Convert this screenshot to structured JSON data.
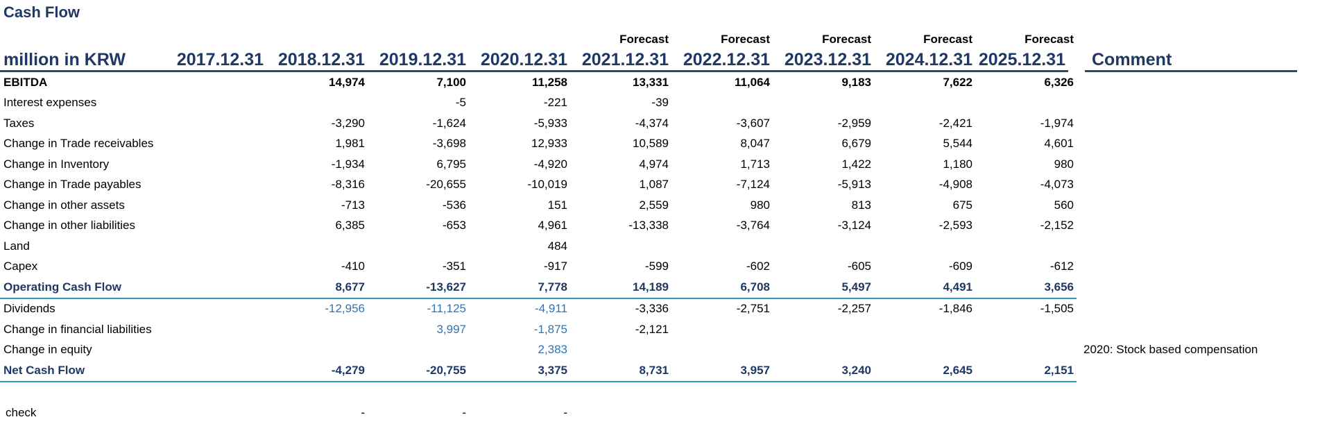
{
  "title": "Cash Flow",
  "unit_label": "million in KRW",
  "comment_header": "Comment",
  "forecast_label": "Forecast",
  "years": [
    "2017.12.31",
    "2018.12.31",
    "2019.12.31",
    "2020.12.31",
    "2021.12.31",
    "2022.12.31",
    "2023.12.31",
    "2024.12.31",
    "2025.12.31"
  ],
  "forecast_flags": [
    false,
    false,
    false,
    false,
    true,
    true,
    true,
    true,
    true
  ],
  "rows": [
    {
      "label": "EBITDA",
      "values": [
        "",
        "14,974",
        "7,100",
        "11,258",
        "13,331",
        "11,064",
        "9,183",
        "7,622",
        "6,326"
      ],
      "comment": "",
      "style": "bold"
    },
    {
      "label": "Interest expenses",
      "values": [
        "",
        "",
        "-5",
        "-221",
        "-39",
        "",
        "",
        "",
        ""
      ],
      "comment": "",
      "style": ""
    },
    {
      "label": "Taxes",
      "values": [
        "",
        "-3,290",
        "-1,624",
        "-5,933",
        "-4,374",
        "-3,607",
        "-2,959",
        "-2,421",
        "-1,974"
      ],
      "comment": "",
      "style": ""
    },
    {
      "label": "Change in Trade receivables",
      "values": [
        "",
        "1,981",
        "-3,698",
        "12,933",
        "10,589",
        "8,047",
        "6,679",
        "5,544",
        "4,601"
      ],
      "comment": "",
      "style": ""
    },
    {
      "label": "Change in Inventory",
      "values": [
        "",
        "-1,934",
        "6,795",
        "-4,920",
        "4,974",
        "1,713",
        "1,422",
        "1,180",
        "980"
      ],
      "comment": "",
      "style": ""
    },
    {
      "label": "Change in Trade payables",
      "values": [
        "",
        "-8,316",
        "-20,655",
        "-10,019",
        "1,087",
        "-7,124",
        "-5,913",
        "-4,908",
        "-4,073"
      ],
      "comment": "",
      "style": ""
    },
    {
      "label": "Change in other assets",
      "values": [
        "",
        "-713",
        "-536",
        "151",
        "2,559",
        "980",
        "813",
        "675",
        "560"
      ],
      "comment": "",
      "style": ""
    },
    {
      "label": "Change in other liabilities",
      "values": [
        "",
        "6,385",
        "-653",
        "4,961",
        "-13,338",
        "-3,764",
        "-3,124",
        "-2,593",
        "-2,152"
      ],
      "comment": "",
      "style": ""
    },
    {
      "label": "Land",
      "values": [
        "",
        "",
        "",
        "484",
        "",
        "",
        "",
        "",
        ""
      ],
      "comment": "",
      "style": ""
    },
    {
      "label": "Capex",
      "values": [
        "",
        "-410",
        "-351",
        "-917",
        "-599",
        "-602",
        "-605",
        "-609",
        "-612"
      ],
      "comment": "",
      "style": ""
    },
    {
      "label": "Operating Cash Flow",
      "values": [
        "",
        "8,677",
        "-13,627",
        "7,778",
        "14,189",
        "6,708",
        "5,497",
        "4,491",
        "3,656"
      ],
      "comment": "",
      "style": "total"
    },
    {
      "label": "Dividends",
      "values": [
        "",
        "-12,956",
        "-11,125",
        "-4,911",
        "-3,336",
        "-2,751",
        "-2,257",
        "-1,846",
        "-1,505"
      ],
      "comment": "",
      "style": "",
      "blue_cols": [
        1,
        2,
        3
      ]
    },
    {
      "label": "Change in financial liabilities",
      "values": [
        "",
        "",
        "3,997",
        "-1,875",
        "-2,121",
        "",
        "",
        "",
        ""
      ],
      "comment": "",
      "style": "",
      "blue_cols": [
        2,
        3
      ]
    },
    {
      "label": "Change in equity",
      "values": [
        "",
        "",
        "",
        "2,383",
        "",
        "",
        "",
        "",
        ""
      ],
      "comment": "2020: Stock based compensation",
      "style": "",
      "blue_cols": [
        3
      ]
    },
    {
      "label": "Net Cash Flow",
      "values": [
        "",
        "-4,279",
        "-20,755",
        "3,375",
        "8,731",
        "3,957",
        "3,240",
        "2,645",
        "2,151"
      ],
      "comment": "",
      "style": "total"
    }
  ],
  "check": {
    "label": "check",
    "values": [
      "",
      "-",
      "-",
      "-",
      "",
      "",
      "",
      "",
      ""
    ]
  },
  "colors": {
    "navy": "#1f3864",
    "rule": "#1f4e79",
    "separator": "#2e9bbf",
    "historic_blue": "#2e75b6"
  }
}
